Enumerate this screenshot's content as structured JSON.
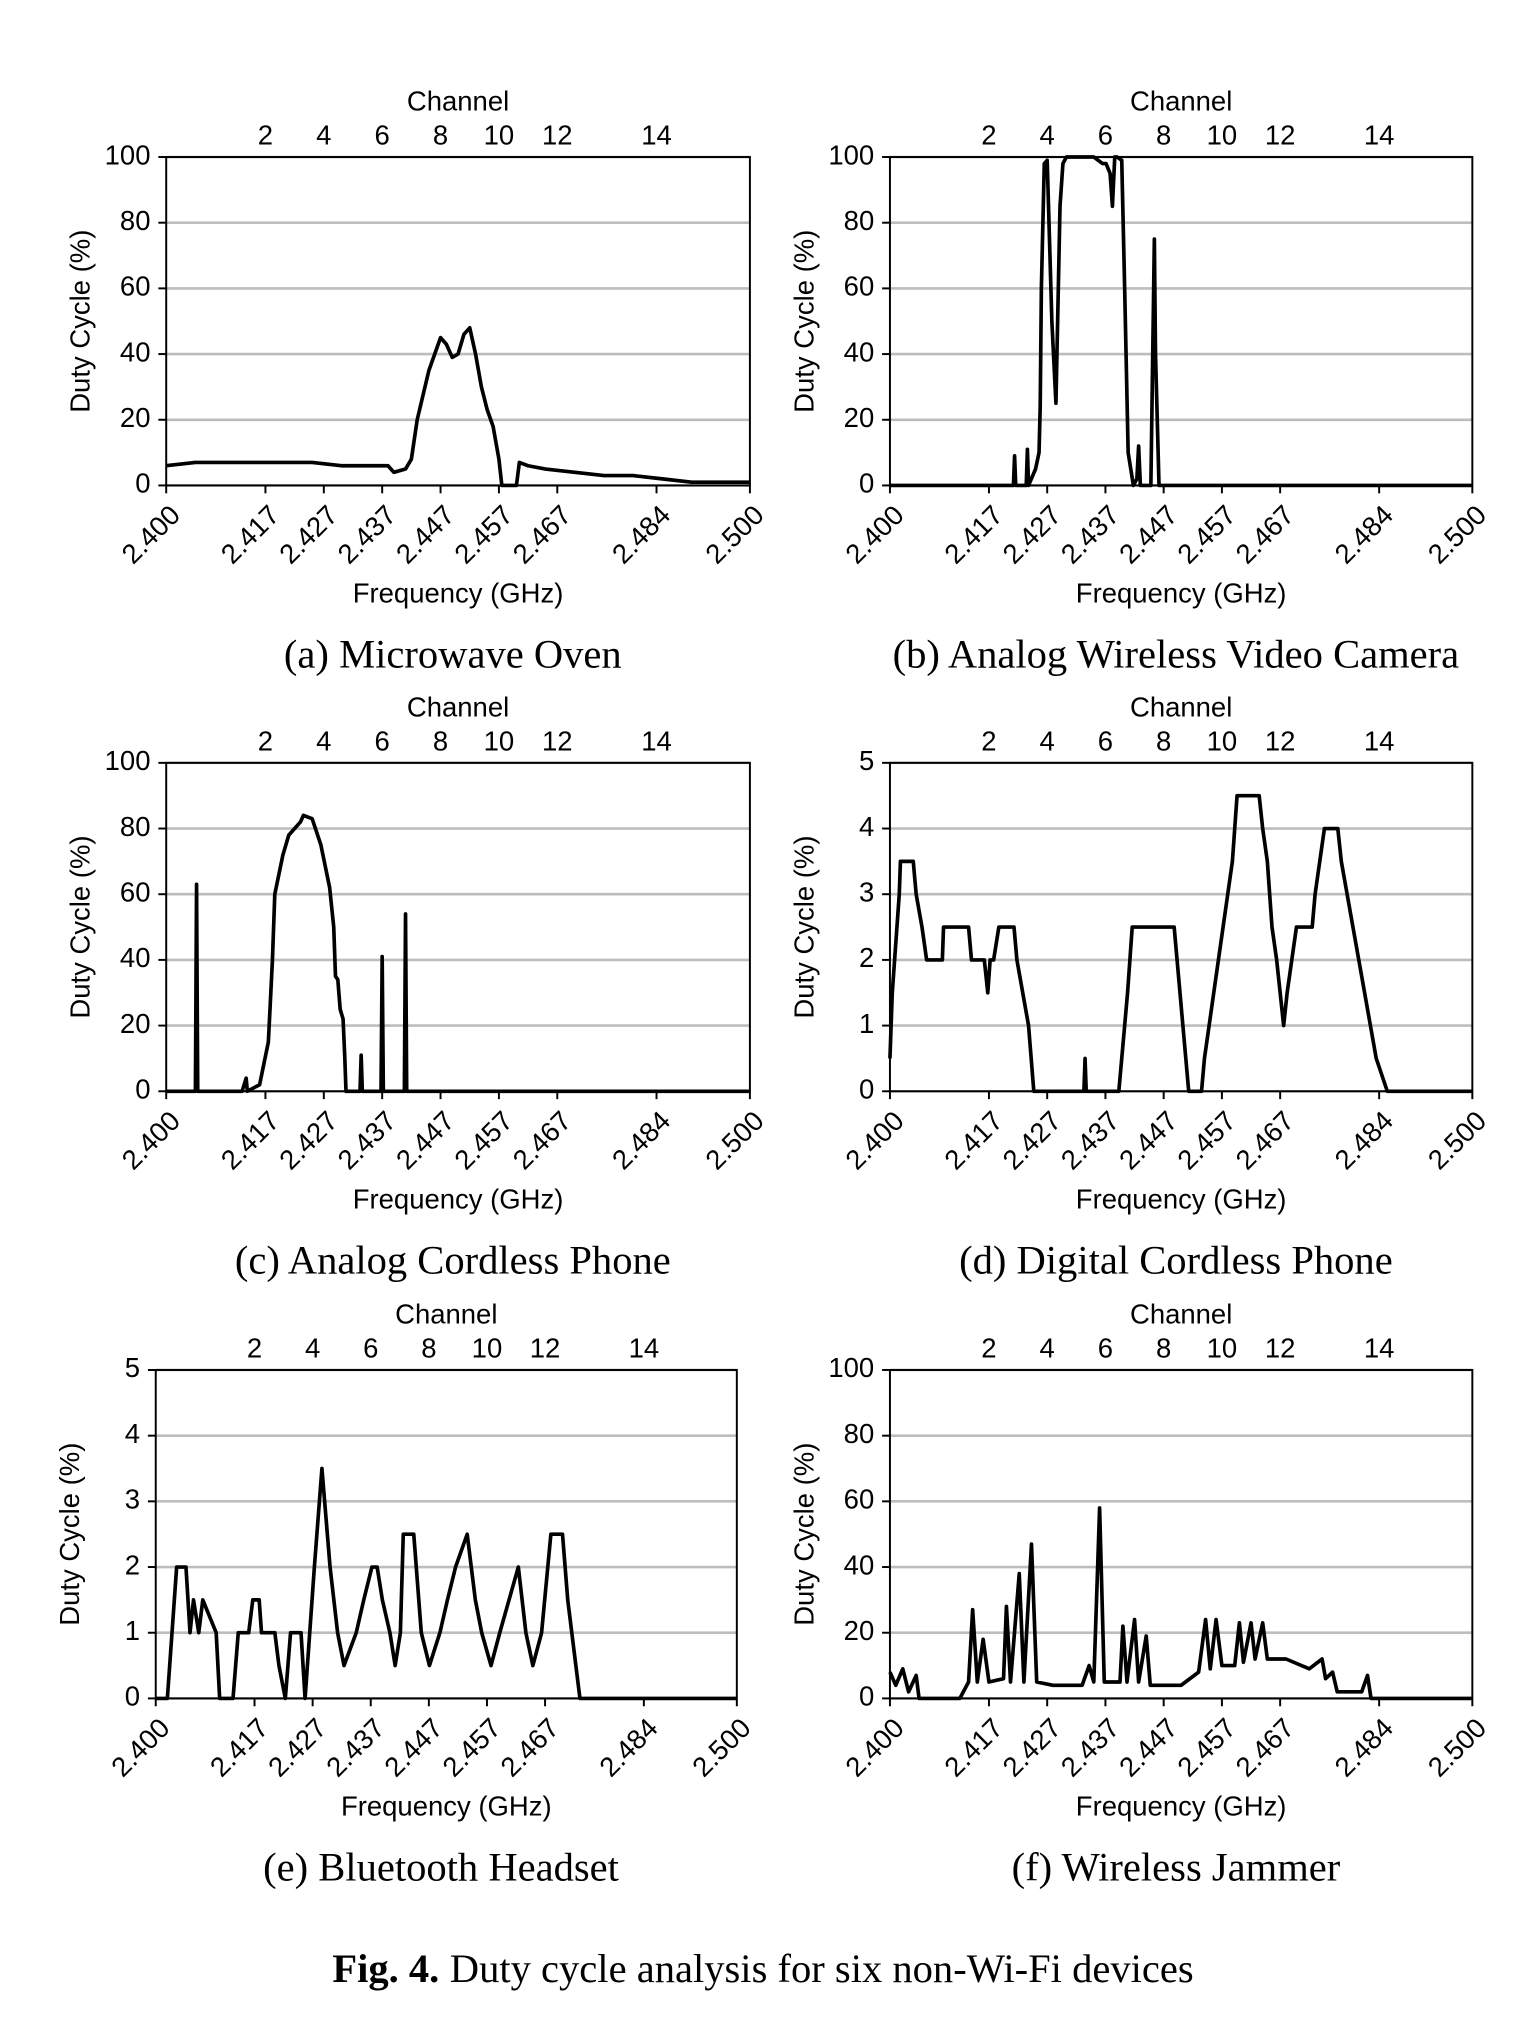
{
  "chart_data": [
    {
      "type": "line",
      "title": "(a) Microwave Oven",
      "x_label": "Frequency (GHz)",
      "y_label": "Duty Cycle (%)",
      "x2_label": "Channel",
      "color": "#000000",
      "grid": true,
      "xlim": [
        2.4,
        2.5
      ],
      "x2lim": [
        2.4,
        2.5
      ],
      "ylim": [
        0,
        100
      ],
      "xticks": [
        {
          "value": 2.4,
          "label": "2.400"
        },
        2.417,
        2.427,
        2.437,
        2.447,
        2.457,
        2.467,
        2.484,
        {
          "value": 2.5,
          "label": "2.500"
        }
      ],
      "x2ticks": [
        {
          "value": 2.417,
          "label": "2"
        },
        {
          "value": 2.427,
          "label": "4"
        },
        {
          "value": 2.437,
          "label": "6"
        },
        {
          "value": 2.447,
          "label": "8"
        },
        {
          "value": 2.457,
          "label": "10"
        },
        {
          "value": 2.467,
          "label": "12"
        },
        {
          "value": 2.484,
          "label": "14"
        }
      ],
      "yticks": [
        0,
        20,
        40,
        60,
        80,
        100
      ],
      "x": [
        2.4,
        2.405,
        2.41,
        2.415,
        2.42,
        2.425,
        2.43,
        2.435,
        2.438,
        2.439,
        2.441,
        2.442,
        2.443,
        2.445,
        2.447,
        2.448,
        2.449,
        2.45,
        2.451,
        2.452,
        2.453,
        2.454,
        2.455,
        2.456,
        2.457,
        2.4575,
        2.46,
        2.4605,
        2.462,
        2.465,
        2.47,
        2.475,
        2.48,
        2.485,
        2.49,
        2.495,
        2.5
      ],
      "values": [
        6,
        7,
        7,
        7,
        7,
        7,
        6,
        6,
        6,
        4,
        5,
        8,
        20,
        35,
        45,
        43,
        39,
        40,
        46,
        48,
        40,
        30,
        23,
        18,
        8,
        0,
        0,
        7,
        6,
        5,
        4,
        3,
        3,
        2,
        1,
        1,
        1
      ]
    },
    {
      "type": "line",
      "title": "(b) Analog Wireless Video Camera",
      "x_label": "Frequency (GHz)",
      "y_label": "Duty Cycle (%)",
      "x2_label": "Channel",
      "color": "#000000",
      "grid": true,
      "xlim": [
        2.4,
        2.5
      ],
      "x2lim": [
        2.4,
        2.5
      ],
      "ylim": [
        0,
        100
      ],
      "xticks": [
        {
          "value": 2.4,
          "label": "2.400"
        },
        2.417,
        2.427,
        2.437,
        2.447,
        2.457,
        2.467,
        2.484,
        {
          "value": 2.5,
          "label": "2.500"
        }
      ],
      "x2ticks": [
        {
          "value": 2.417,
          "label": "2"
        },
        {
          "value": 2.427,
          "label": "4"
        },
        {
          "value": 2.437,
          "label": "6"
        },
        {
          "value": 2.447,
          "label": "8"
        },
        {
          "value": 2.457,
          "label": "10"
        },
        {
          "value": 2.467,
          "label": "12"
        },
        {
          "value": 2.484,
          "label": "14"
        }
      ],
      "yticks": [
        0,
        20,
        40,
        60,
        80,
        100
      ],
      "x": [
        2.4,
        2.42,
        2.4212,
        2.4214,
        2.4216,
        2.4234,
        2.4236,
        2.4238,
        2.425,
        2.4256,
        2.4258,
        2.426,
        2.4265,
        2.427,
        2.4278,
        2.4285,
        2.4292,
        2.4297,
        2.4303,
        2.432,
        2.435,
        2.4365,
        2.4371,
        2.4378,
        2.4382,
        2.4386,
        2.439,
        2.4398,
        2.4403,
        2.4409,
        2.4418,
        2.4424,
        2.4427,
        2.443,
        2.4436,
        2.4448,
        2.4452,
        2.4454,
        2.4456,
        2.4462,
        2.45,
        2.5
      ],
      "values": [
        0,
        0,
        0,
        9,
        0,
        0,
        11,
        0,
        5,
        10,
        24,
        60,
        98,
        99,
        50,
        25,
        85,
        98,
        100,
        100,
        100,
        98,
        98,
        95,
        85,
        100,
        100,
        99,
        60,
        10,
        0,
        2,
        12,
        0,
        0,
        0,
        50,
        75,
        40,
        0,
        0,
        0
      ]
    },
    {
      "type": "line",
      "title": "(c) Analog Cordless Phone",
      "x_label": "Frequency (GHz)",
      "y_label": "Duty Cycle (%)",
      "x2_label": "Channel",
      "color": "#000000",
      "grid": true,
      "xlim": [
        2.4,
        2.5
      ],
      "x2lim": [
        2.4,
        2.5
      ],
      "ylim": [
        0,
        100
      ],
      "xticks": [
        {
          "value": 2.4,
          "label": "2.400"
        },
        2.417,
        2.427,
        2.437,
        2.447,
        2.457,
        2.467,
        2.484,
        {
          "value": 2.5,
          "label": "2.500"
        }
      ],
      "x2ticks": [
        {
          "value": 2.417,
          "label": "2"
        },
        {
          "value": 2.427,
          "label": "4"
        },
        {
          "value": 2.437,
          "label": "6"
        },
        {
          "value": 2.447,
          "label": "8"
        },
        {
          "value": 2.457,
          "label": "10"
        },
        {
          "value": 2.467,
          "label": "12"
        },
        {
          "value": 2.484,
          "label": "14"
        }
      ],
      "yticks": [
        0,
        20,
        40,
        60,
        80,
        100
      ],
      "x": [
        2.4,
        2.405,
        2.4052,
        2.4054,
        2.413,
        2.4137,
        2.4139,
        2.416,
        2.4175,
        2.4182,
        2.4186,
        2.42,
        2.421,
        2.423,
        2.4235,
        2.425,
        2.4265,
        2.428,
        2.4287,
        2.429,
        2.4294,
        2.4298,
        2.4303,
        2.4306,
        2.4308,
        2.4332,
        2.4334,
        2.4336,
        2.4368,
        2.437,
        2.4372,
        2.4408,
        2.441,
        2.4412,
        2.5
      ],
      "values": [
        0,
        0,
        63,
        0,
        0,
        4,
        0,
        2,
        15,
        40,
        60,
        72,
        78,
        82,
        84,
        83,
        75,
        62,
        50,
        35,
        34,
        25,
        22,
        10,
        0,
        0,
        11,
        0,
        0,
        41,
        0,
        0,
        54,
        0,
        0
      ]
    },
    {
      "type": "line",
      "title": "(d) Digital Cordless Phone",
      "x_label": "Frequency (GHz)",
      "y_label": "Duty Cycle (%)",
      "x2_label": "Channel",
      "color": "#000000",
      "grid": true,
      "xlim": [
        2.4,
        2.5
      ],
      "x2lim": [
        2.4,
        2.5
      ],
      "ylim": [
        0,
        5
      ],
      "xticks": [
        {
          "value": 2.4,
          "label": "2.400"
        },
        2.417,
        2.427,
        2.437,
        2.447,
        2.457,
        2.467,
        2.484,
        {
          "value": 2.5,
          "label": "2.500"
        }
      ],
      "x2ticks": [
        {
          "value": 2.417,
          "label": "2"
        },
        {
          "value": 2.427,
          "label": "4"
        },
        {
          "value": 2.437,
          "label": "6"
        },
        {
          "value": 2.447,
          "label": "8"
        },
        {
          "value": 2.457,
          "label": "10"
        },
        {
          "value": 2.467,
          "label": "12"
        },
        {
          "value": 2.484,
          "label": "14"
        }
      ],
      "yticks": [
        0,
        1,
        2,
        3,
        4,
        5
      ],
      "x": [
        2.4,
        2.4004,
        2.4008,
        2.4012,
        2.4016,
        2.4018,
        2.404,
        2.4045,
        2.4055,
        2.4063,
        2.409,
        2.4092,
        2.4135,
        2.414,
        2.4162,
        2.4168,
        2.4172,
        2.4178,
        2.4187,
        2.4213,
        2.4218,
        2.4228,
        2.4238,
        2.4247,
        2.4333,
        2.4335,
        2.4337,
        2.4393,
        2.4398,
        2.4403,
        2.4408,
        2.4412,
        2.4416,
        2.4488,
        2.4493,
        2.4498,
        2.4503,
        2.4508,
        2.4513,
        2.4535,
        2.454,
        2.4548,
        2.4556,
        2.4564,
        2.4572,
        2.458,
        2.4588,
        2.4596,
        2.4634,
        2.464,
        2.4648,
        2.4656,
        2.4664,
        2.467,
        2.4676,
        2.4682,
        2.469,
        2.4698,
        2.4725,
        2.473,
        2.4738,
        2.4746,
        2.4769,
        2.4775,
        2.4785,
        2.4795,
        2.4805,
        2.4815,
        2.4825,
        2.4835,
        2.4854,
        2.5
      ],
      "values": [
        0.5,
        1.5,
        2,
        2.5,
        3,
        3.5,
        3.5,
        3,
        2.5,
        2,
        2,
        2.5,
        2.5,
        2,
        2,
        1.5,
        2,
        2,
        2.5,
        2.5,
        2,
        1.5,
        1,
        0,
        0,
        0.5,
        0,
        0,
        0.5,
        1,
        1.5,
        2,
        2.5,
        2.5,
        2,
        1.5,
        1,
        0.5,
        0,
        0,
        0.5,
        1,
        1.5,
        2,
        2.5,
        3,
        3.5,
        4.5,
        4.5,
        4,
        3.5,
        2.5,
        2,
        1.5,
        1,
        1.5,
        2,
        2.5,
        2.5,
        3,
        3.5,
        4,
        4,
        3.5,
        3,
        2.5,
        2,
        1.5,
        1,
        0.5,
        0,
        0
      ]
    },
    {
      "type": "line",
      "title": "(e) Bluetooth Headset",
      "x_label": "Frequency (GHz)",
      "y_label": "Duty Cycle (%)",
      "x2_label": "Channel",
      "color": "#000000",
      "grid": true,
      "xlim": [
        2.4,
        2.5
      ],
      "x2lim": [
        2.4,
        2.5
      ],
      "ylim": [
        0,
        5
      ],
      "xticks": [
        {
          "value": 2.4,
          "label": "2.400"
        },
        2.417,
        2.427,
        2.437,
        2.447,
        2.457,
        2.467,
        2.484,
        {
          "value": 2.5,
          "label": "2.500"
        }
      ],
      "x2ticks": [
        {
          "value": 2.417,
          "label": "2"
        },
        {
          "value": 2.427,
          "label": "4"
        },
        {
          "value": 2.437,
          "label": "6"
        },
        {
          "value": 2.447,
          "label": "8"
        },
        {
          "value": 2.457,
          "label": "10"
        },
        {
          "value": 2.467,
          "label": "12"
        },
        {
          "value": 2.484,
          "label": "14"
        }
      ],
      "yticks": [
        0,
        1,
        2,
        3,
        4,
        5
      ],
      "x": [
        2.4,
        2.402,
        2.4036,
        2.4052,
        2.4059,
        2.4065,
        2.4074,
        2.4081,
        2.4104,
        2.411,
        2.4133,
        2.4142,
        2.416,
        2.4167,
        2.4178,
        2.4182,
        2.4205,
        2.4212,
        2.4223,
        2.4232,
        2.425,
        2.4257,
        2.4273,
        2.4286,
        2.43,
        2.4313,
        2.4324,
        2.4345,
        2.4358,
        2.4372,
        2.4381,
        2.439,
        2.4403,
        2.4412,
        2.4421,
        2.4426,
        2.4444,
        2.4457,
        2.4471,
        2.4489,
        2.4502,
        2.4516,
        2.4536,
        2.455,
        2.4561,
        2.4577,
        2.4592,
        2.4624,
        2.4637,
        2.4649,
        2.4664,
        2.468,
        2.47,
        2.4709,
        2.473,
        2.5
      ],
      "values": [
        0,
        0,
        2,
        2,
        1,
        1.5,
        1,
        1.5,
        1,
        0,
        0,
        1,
        1,
        1.5,
        1.5,
        1,
        1,
        0.5,
        0,
        1,
        1,
        0,
        2,
        3.5,
        2,
        1,
        0.5,
        1,
        1.5,
        2,
        2,
        1.5,
        1,
        0.5,
        1,
        2.5,
        2.5,
        1,
        0.5,
        1,
        1.5,
        2,
        2.5,
        1.5,
        1,
        0.5,
        1,
        2,
        1,
        0.5,
        1,
        2.5,
        2.5,
        1.5,
        0,
        0
      ]
    },
    {
      "type": "line",
      "title": "(f) Wireless Jammer",
      "x_label": "Frequency (GHz)",
      "y_label": "Duty Cycle (%)",
      "x2_label": "Channel",
      "color": "#000000",
      "grid": true,
      "xlim": [
        2.4,
        2.5
      ],
      "x2lim": [
        2.4,
        2.5
      ],
      "ylim": [
        0,
        100
      ],
      "xticks": [
        {
          "value": 2.4,
          "label": "2.400"
        },
        2.417,
        2.427,
        2.437,
        2.447,
        2.457,
        2.467,
        2.484,
        {
          "value": 2.5,
          "label": "2.500"
        }
      ],
      "x2ticks": [
        {
          "value": 2.417,
          "label": "2"
        },
        {
          "value": 2.427,
          "label": "4"
        },
        {
          "value": 2.437,
          "label": "6"
        },
        {
          "value": 2.447,
          "label": "8"
        },
        {
          "value": 2.457,
          "label": "10"
        },
        {
          "value": 2.467,
          "label": "12"
        },
        {
          "value": 2.484,
          "label": "14"
        }
      ],
      "yticks": [
        0,
        20,
        40,
        60,
        80,
        100
      ],
      "x": [
        2.4,
        2.401,
        2.4022,
        2.4032,
        2.4045,
        2.405,
        2.412,
        2.4135,
        2.4142,
        2.415,
        2.416,
        2.417,
        2.4195,
        2.42,
        2.4207,
        2.4222,
        2.423,
        2.4243,
        2.4252,
        2.428,
        2.433,
        2.4342,
        2.435,
        2.436,
        2.4368,
        2.4395,
        2.44,
        2.4407,
        2.442,
        2.4427,
        2.444,
        2.4447,
        2.45,
        2.453,
        2.4542,
        2.455,
        2.456,
        2.457,
        2.4592,
        2.46,
        2.4607,
        2.462,
        2.4627,
        2.464,
        2.4648,
        2.468,
        2.472,
        2.4742,
        2.4748,
        2.476,
        2.4768,
        2.481,
        2.482,
        2.4826,
        2.5
      ],
      "values": [
        8,
        4,
        9,
        2,
        7,
        0,
        0,
        5,
        27,
        5,
        18,
        5,
        6,
        28,
        5,
        38,
        5,
        47,
        5,
        4,
        4,
        10,
        5,
        58,
        5,
        5,
        22,
        5,
        24,
        5,
        19,
        4,
        4,
        8,
        24,
        9,
        24,
        10,
        10,
        23,
        11,
        23,
        12,
        23,
        12,
        12,
        9,
        12,
        6,
        8,
        2,
        2,
        7,
        0,
        0
      ]
    }
  ],
  "caption": {
    "label": "Fig. 4.",
    "text": "Duty cycle analysis for six non-Wi-Fi devices"
  }
}
